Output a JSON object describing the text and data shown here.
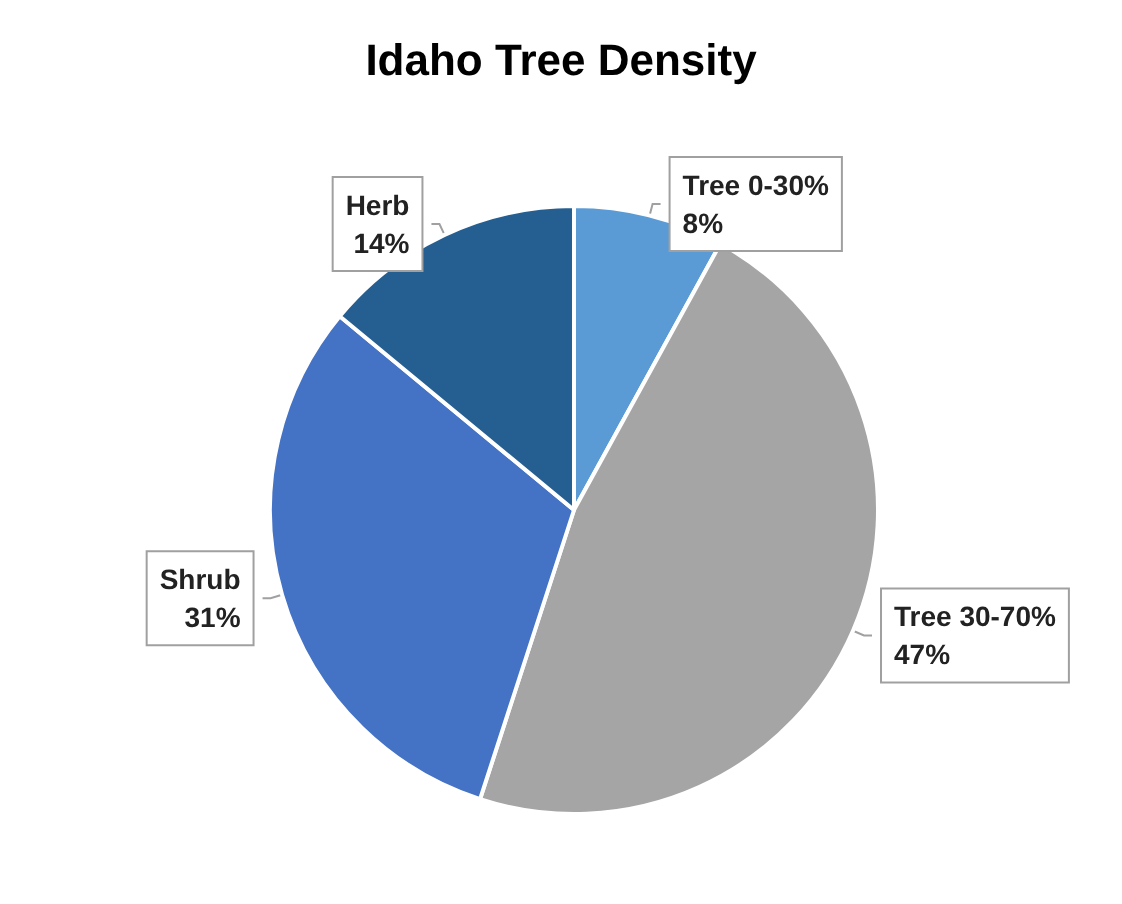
{
  "chart_data": {
    "type": "pie",
    "title": "Idaho Tree Density",
    "categories": [
      "Tree 0-30%",
      "Tree 30-70%",
      "Shrub",
      "Herb"
    ],
    "values": [
      8,
      47,
      31,
      14
    ],
    "colors": [
      "#5b9bd5",
      "#a5a5a5",
      "#4472c4",
      "#255e91"
    ],
    "value_labels": [
      "8%",
      "47%",
      "31%",
      "14%"
    ],
    "legend": false
  }
}
